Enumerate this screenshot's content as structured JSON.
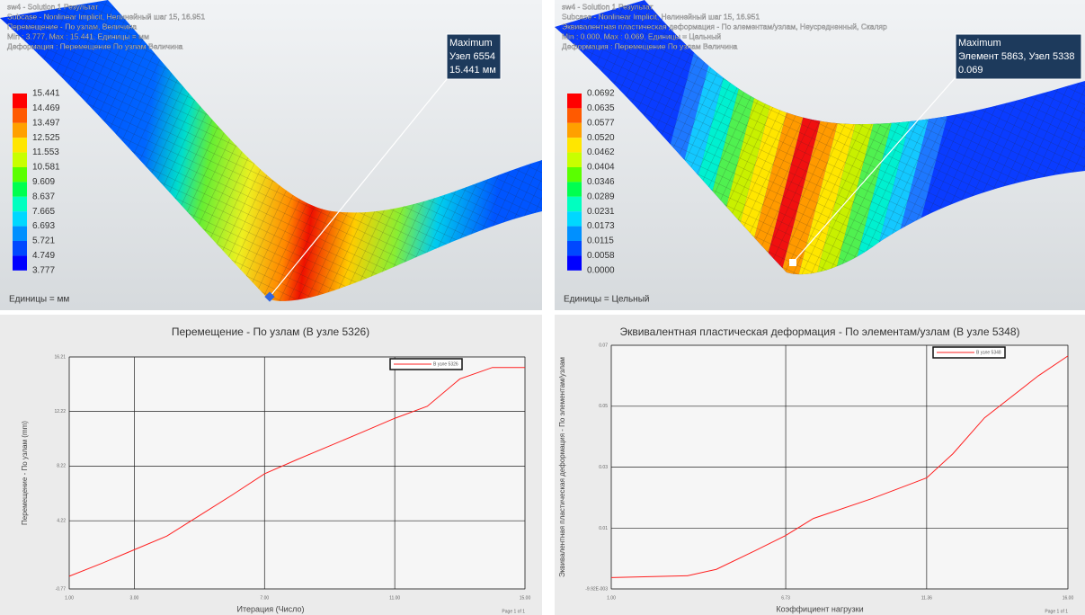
{
  "viewports": [
    {
      "header": [
        "sw4 - Solution 1 Результат",
        "Subcase - Nonlinear Implicit, Нелинейный шаг 15, 16.951",
        "Перемещение - По узлам, Величина",
        "Min : 3.777, Max : 15.441, Единицы = мм",
        "Деформация : Перемещение По узлам Величина"
      ],
      "legend": [
        "15.441",
        "14.469",
        "13.497",
        "12.525",
        "11.553",
        "10.581",
        "9.609",
        "8.637",
        "7.665",
        "6.693",
        "5.721",
        "4.749",
        "3.777"
      ],
      "colors": [
        "#ff0000",
        "#ff5a00",
        "#ffa000",
        "#ffe600",
        "#c8ff00",
        "#5aff00",
        "#00ff50",
        "#00ffc0",
        "#00d8ff",
        "#0090ff",
        "#0048ff",
        "#0000ff"
      ],
      "units": "Единицы = мм",
      "callout": [
        "Maximum",
        "Узел 6554",
        "15.441 мм"
      ]
    },
    {
      "header": [
        "sw4 - Solution 1 Результат",
        "Subcase - Nonlinear Implicit, Нелинейный шаг 15, 16.951",
        "Эквивалентная пластическая деформация - По элементам/узлам, Неусредненный, Скаляр",
        "Min : 0.000, Max : 0.069, Единицы = Цельный",
        "Деформация : Перемещение По узлам Величина"
      ],
      "legend": [
        "0.0692",
        "0.0635",
        "0.0577",
        "0.0520",
        "0.0462",
        "0.0404",
        "0.0346",
        "0.0289",
        "0.0231",
        "0.0173",
        "0.0115",
        "0.0058",
        "0.0000"
      ],
      "colors": [
        "#ff0000",
        "#ff5a00",
        "#ffa000",
        "#ffe600",
        "#c8ff00",
        "#5aff00",
        "#00ff50",
        "#00ffc0",
        "#00d8ff",
        "#0090ff",
        "#0048ff",
        "#0000ff"
      ],
      "units": "Единицы = Цельный",
      "callout": [
        "Maximum",
        "Элемент 5863, Узел 5338",
        "0.069"
      ]
    }
  ],
  "chart_data": [
    {
      "type": "line",
      "title": "Перемещение - По узлам (В узле 5326)",
      "x_label": "Итерация (Число)",
      "y_label": "Перемещение - По узлам (mm)",
      "page": "Page 1 of 1",
      "x": [
        1,
        2,
        3,
        4,
        5,
        6,
        7,
        8,
        9,
        10,
        11,
        12,
        13,
        14,
        15
      ],
      "series": [
        {
          "name": "В узле 5326",
          "color": "#ff2020",
          "values": [
            0.16,
            1.1,
            2.1,
            3.1,
            4.6,
            6.1,
            7.66,
            8.7,
            9.7,
            10.7,
            11.72,
            12.6,
            14.6,
            15.44,
            15.44
          ]
        }
      ],
      "xlim": [
        1,
        15
      ],
      "xticks": [
        {
          "value": 1,
          "label": "1.00"
        },
        {
          "value": 3,
          "label": "3.00"
        },
        {
          "value": 7,
          "label": "7.00"
        },
        {
          "value": 11,
          "label": "11.00"
        },
        {
          "value": 15,
          "label": "15.00"
        }
      ],
      "ylim": [
        -0.77,
        16.21
      ],
      "yticks": [
        -0.77,
        4.22,
        8.22,
        12.22,
        16.21
      ],
      "grid": true
    },
    {
      "type": "line",
      "title": "Эквивалентная пластическая деформация - По элементам/узлам (В узле 5348)",
      "x_label": "Коэффициент нагрузки",
      "y_label": "Эквивалентная пластическая деформация - По элементам/узлам",
      "page": "Page 1 of 1",
      "x": [
        1,
        3.5,
        4.45,
        5.72,
        6.73,
        7.64,
        9.56,
        11.36,
        12.22,
        13.26,
        15.03,
        16
      ],
      "series": [
        {
          "name": "В узле 5348",
          "color": "#ff2020",
          "values": [
            -0.0062,
            -0.0056,
            -0.0035,
            0.0026,
            0.0076,
            0.0132,
            0.0197,
            0.0265,
            0.0344,
            0.0462,
            0.06,
            0.0665
          ]
        }
      ],
      "xlim": [
        1,
        16
      ],
      "xticks": [
        {
          "value": 1,
          "label": "1.00"
        },
        {
          "value": 6.73,
          "label": "6.73"
        },
        {
          "value": 11.36,
          "label": "11.36"
        },
        {
          "value": 16,
          "label": "16.00"
        }
      ],
      "ylim": [
        -0.00992,
        0.07
      ],
      "yticks": [
        {
          "value": -0.00992,
          "label": "-9.92E-003"
        },
        0.01,
        0.03,
        0.05,
        0.07
      ],
      "grid": true
    }
  ]
}
